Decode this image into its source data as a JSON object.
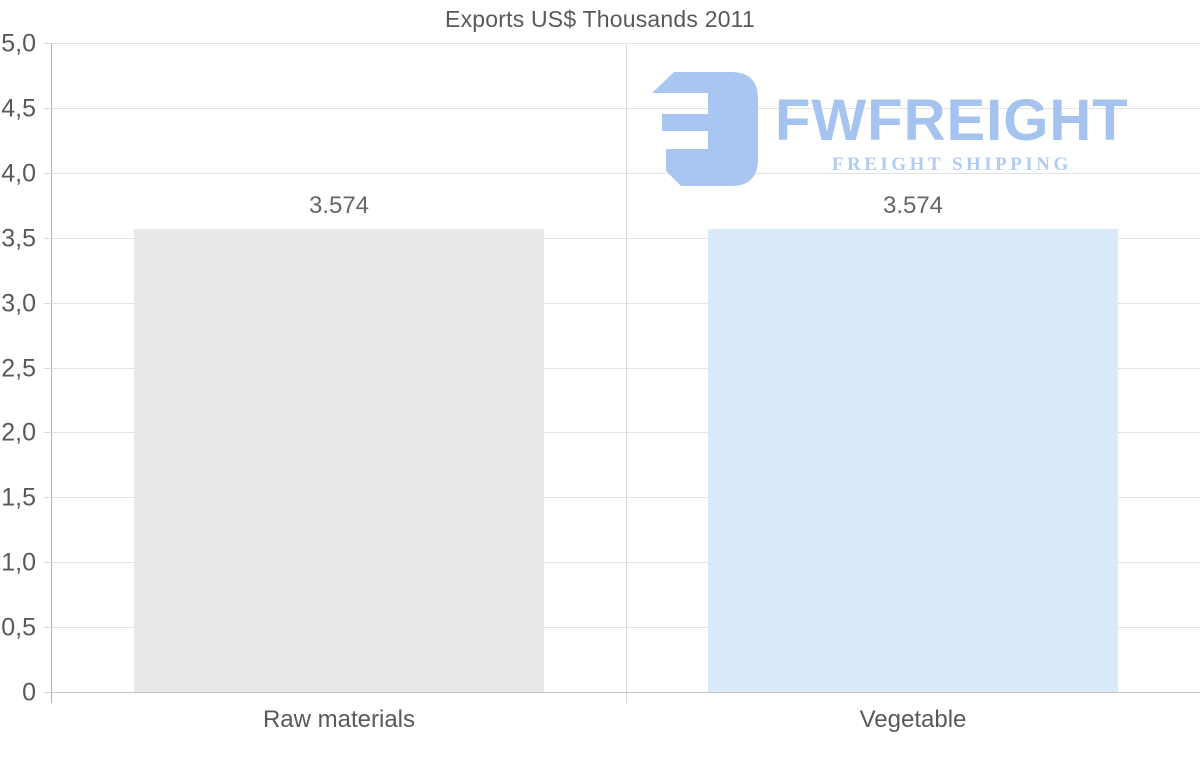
{
  "title": "Exports US$ Thousands 2011",
  "watermark": {
    "brand": "FWFREIGHT",
    "tagline": "FREIGHT SHIPPING",
    "brand_color": "#a5c3ef",
    "tagline_color": "#b1ccf2",
    "icon_color": "#a9c6f0",
    "icon": "fwfreight-logo-mark"
  },
  "chart_data": {
    "type": "bar",
    "title": "Exports US$ Thousands 2011",
    "categories": [
      "Raw materials",
      "Vegetable"
    ],
    "values": [
      3.574,
      3.574
    ],
    "value_labels": [
      "3.574",
      "3.574"
    ],
    "bar_colors": [
      "#e8e8e8",
      "#d9e9f9"
    ],
    "xlabel": "",
    "ylabel": "",
    "ylim": [
      0,
      5
    ],
    "ytick_values": [
      0,
      0.5,
      1.0,
      1.5,
      2.0,
      2.5,
      3.0,
      3.5,
      4.0,
      4.5,
      5.0
    ],
    "ytick_labels": [
      "0",
      "0,5",
      "1,0",
      "1,5",
      "2,0",
      "2,5",
      "3,0",
      "3,5",
      "4,0",
      "4,5",
      "5,0"
    ],
    "decimal_style": "comma",
    "grid": true,
    "legend": "none",
    "axis_color": "#b2b2b2",
    "gridline_color": "#e3e3e3",
    "text_color": "#595959"
  }
}
